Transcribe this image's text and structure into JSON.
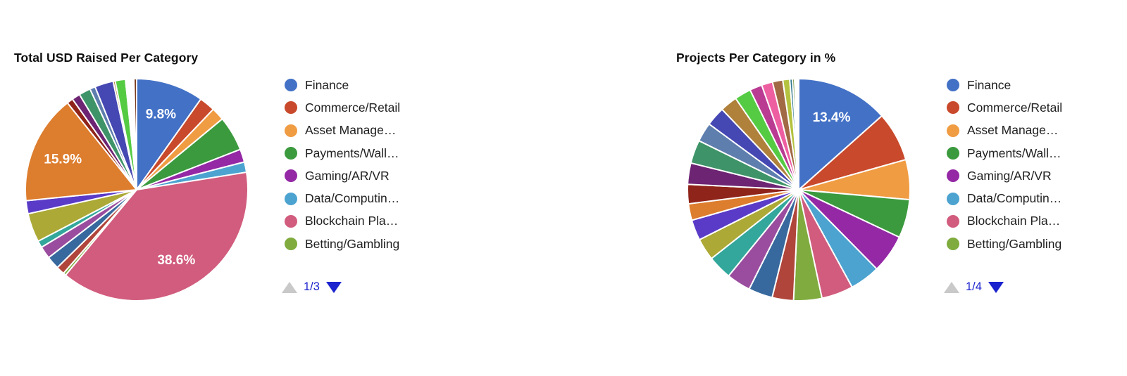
{
  "page": {
    "background": "#ffffff"
  },
  "legend_common": {
    "visible_items": [
      "Finance",
      "Commerce/Retail",
      "Asset Manage…",
      "Payments/Wall…",
      "Gaming/AR/VR",
      "Data/Computin…",
      "Blockchain Pla…",
      "Betting/Gambling"
    ],
    "pager_up_color": "#c9c9c9",
    "pager_down_color": "#1b23ce",
    "pager_text_color": "#1b23ce"
  },
  "chart_data": [
    {
      "type": "pie",
      "title": "Total USD Raised Per Category",
      "unit": "%",
      "label_threshold_pct": 8,
      "visible_slice_labels": [
        "9.8%",
        "15.9%",
        "38.6%"
      ],
      "legend_pagination": "1/3",
      "legend_items": [
        {
          "label": "Finance",
          "color": "#4371C6"
        },
        {
          "label": "Commerce/Retail",
          "color": "#C8492B"
        },
        {
          "label": "Asset Manage…",
          "color": "#F09C43"
        },
        {
          "label": "Payments/Wall…",
          "color": "#3B9A3E"
        },
        {
          "label": "Gaming/AR/VR",
          "color": "#9428A5"
        },
        {
          "label": "Data/Computin…",
          "color": "#4CA3D0"
        },
        {
          "label": "Blockchain Pla…",
          "color": "#D15C7D"
        },
        {
          "label": "Betting/Gambling",
          "color": "#80AB3E"
        }
      ],
      "slices": [
        {
          "label": "Finance",
          "pct": 9.8,
          "color": "#4371C6"
        },
        {
          "label": "Commerce/Retail",
          "pct": 2.3,
          "color": "#C8492B"
        },
        {
          "label": "Asset Manage…",
          "pct": 1.9,
          "color": "#F09C43"
        },
        {
          "label": "Payments/Wall…",
          "pct": 5.1,
          "color": "#3B9A3E"
        },
        {
          "label": "Gaming/AR/VR",
          "pct": 1.9,
          "color": "#9428A5"
        },
        {
          "label": "Data/Computin…",
          "pct": 1.5,
          "color": "#4CA3D0"
        },
        {
          "label": "Blockchain Pla…",
          "pct": 38.6,
          "color": "#D15C7D"
        },
        {
          "label": "Betting/Gambling",
          "pct": 0.4,
          "color": "#80AB3E"
        },
        {
          "label": "",
          "pct": 1.2,
          "color": "#B0453B"
        },
        {
          "label": "",
          "pct": 1.9,
          "color": "#38699E"
        },
        {
          "label": "",
          "pct": 1.8,
          "color": "#9A4D9E"
        },
        {
          "label": "",
          "pct": 1.0,
          "color": "#33A79B"
        },
        {
          "label": "",
          "pct": 4.2,
          "color": "#ACA937"
        },
        {
          "label": "",
          "pct": 1.9,
          "color": "#5A3BC8"
        },
        {
          "label": "",
          "pct": 15.9,
          "color": "#DD7D2E"
        },
        {
          "label": "",
          "pct": 0.9,
          "color": "#8F241A"
        },
        {
          "label": "",
          "pct": 1.2,
          "color": "#6D2473"
        },
        {
          "label": "",
          "pct": 1.7,
          "color": "#3E9468"
        },
        {
          "label": "",
          "pct": 0.8,
          "color": "#5E7EAE"
        },
        {
          "label": "",
          "pct": 2.7,
          "color": "#4548B2"
        },
        {
          "label": "",
          "pct": 0.3,
          "color": "#B0813B"
        },
        {
          "label": "",
          "pct": 1.5,
          "color": "#55CB44"
        },
        {
          "label": "",
          "pct": 0.15,
          "color": "#BA3B92"
        },
        {
          "label": "",
          "pct": 0.15,
          "color": "#EE5FA1"
        },
        {
          "label": "",
          "pct": 0.15,
          "color": "#A16A44"
        },
        {
          "label": "",
          "pct": 0.15,
          "color": "#B5C23F"
        },
        {
          "label": "",
          "pct": 0.15,
          "color": "#32798F"
        },
        {
          "label": "",
          "pct": 0.15,
          "color": "#6A8F2B"
        },
        {
          "label": "",
          "pct": 0.15,
          "color": "#BEA82A"
        },
        {
          "label": "",
          "pct": 0.15,
          "color": "#2F6B3A"
        },
        {
          "label": "",
          "pct": 0.4,
          "color": "#7A3D1D"
        }
      ]
    },
    {
      "type": "pie",
      "title": "Projects Per Category in %",
      "unit": "%",
      "label_threshold_pct": 8,
      "visible_slice_labels": [
        "13.4%"
      ],
      "legend_pagination": "1/4",
      "legend_items": [
        {
          "label": "Finance",
          "color": "#4371C6"
        },
        {
          "label": "Commerce/Retail",
          "color": "#C8492B"
        },
        {
          "label": "Asset Manage…",
          "color": "#F09C43"
        },
        {
          "label": "Payments/Wall…",
          "color": "#3B9A3E"
        },
        {
          "label": "Gaming/AR/VR",
          "color": "#9428A5"
        },
        {
          "label": "Data/Computin…",
          "color": "#4CA3D0"
        },
        {
          "label": "Blockchain Pla…",
          "color": "#D15C7D"
        },
        {
          "label": "Betting/Gambling",
          "color": "#80AB3E"
        }
      ],
      "slices": [
        {
          "label": "Finance",
          "pct": 13.4,
          "color": "#4371C6"
        },
        {
          "label": "Commerce/Retail",
          "pct": 7.2,
          "color": "#C8492B"
        },
        {
          "label": "Asset Manage…",
          "pct": 5.8,
          "color": "#F09C43"
        },
        {
          "label": "Payments/Wall…",
          "pct": 5.6,
          "color": "#3B9A3E"
        },
        {
          "label": "Gaming/AR/VR",
          "pct": 5.6,
          "color": "#9428A5"
        },
        {
          "label": "Data/Computin…",
          "pct": 4.4,
          "color": "#4CA3D0"
        },
        {
          "label": "Blockchain Pla…",
          "pct": 4.6,
          "color": "#D15C7D"
        },
        {
          "label": "Betting/Gambling",
          "pct": 4.1,
          "color": "#80AB3E"
        },
        {
          "label": "",
          "pct": 3.1,
          "color": "#B0453B"
        },
        {
          "label": "",
          "pct": 3.5,
          "color": "#38699E"
        },
        {
          "label": "",
          "pct": 3.5,
          "color": "#9A4D9E"
        },
        {
          "label": "",
          "pct": 3.5,
          "color": "#33A79B"
        },
        {
          "label": "",
          "pct": 3.2,
          "color": "#ACA937"
        },
        {
          "label": "",
          "pct": 3.0,
          "color": "#5A3BC8"
        },
        {
          "label": "",
          "pct": 2.4,
          "color": "#DD7D2E"
        },
        {
          "label": "",
          "pct": 2.8,
          "color": "#8F241A"
        },
        {
          "label": "",
          "pct": 3.1,
          "color": "#6D2473"
        },
        {
          "label": "",
          "pct": 3.4,
          "color": "#3E9468"
        },
        {
          "label": "",
          "pct": 2.8,
          "color": "#5E7EAE"
        },
        {
          "label": "",
          "pct": 2.8,
          "color": "#4548B2"
        },
        {
          "label": "",
          "pct": 2.5,
          "color": "#B0813B"
        },
        {
          "label": "",
          "pct": 2.4,
          "color": "#55CB44"
        },
        {
          "label": "",
          "pct": 1.8,
          "color": "#BA3B92"
        },
        {
          "label": "",
          "pct": 1.6,
          "color": "#EE5FA1"
        },
        {
          "label": "",
          "pct": 1.5,
          "color": "#A16A44"
        },
        {
          "label": "",
          "pct": 1.0,
          "color": "#B5C23F"
        },
        {
          "label": "",
          "pct": 0.4,
          "color": "#32798F"
        },
        {
          "label": "",
          "pct": 0.3,
          "color": "#6A8F2B"
        },
        {
          "label": "",
          "pct": 0.2,
          "color": "#BEA82A"
        },
        {
          "label": "",
          "pct": 0.2,
          "color": "#2F6B3A"
        },
        {
          "label": "",
          "pct": 0.2,
          "color": "#7A3D1D"
        }
      ]
    }
  ]
}
